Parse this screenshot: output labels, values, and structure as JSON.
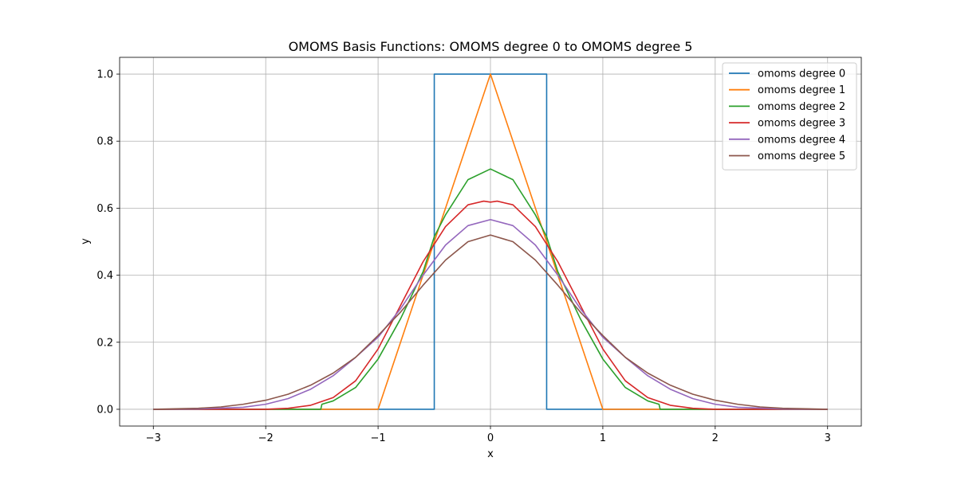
{
  "chart_data": {
    "type": "line",
    "title": "OMOMS Basis Functions: OMOMS degree 0 to OMOMS degree 5",
    "xlabel": "x",
    "ylabel": "y",
    "xlim": [
      -3.3,
      3.3
    ],
    "ylim": [
      -0.05,
      1.05
    ],
    "grid": true,
    "legend_position": "top-right",
    "x_ticks": [
      {
        "value": -3,
        "label": "−3"
      },
      {
        "value": -2,
        "label": "−2"
      },
      {
        "value": -1,
        "label": "−1"
      },
      {
        "value": 0,
        "label": "0"
      },
      {
        "value": 1,
        "label": "1"
      },
      {
        "value": 2,
        "label": "2"
      },
      {
        "value": 3,
        "label": "3"
      }
    ],
    "y_ticks": [
      {
        "value": 0.0,
        "label": "0.0"
      },
      {
        "value": 0.2,
        "label": "0.2"
      },
      {
        "value": 0.4,
        "label": "0.4"
      },
      {
        "value": 0.6,
        "label": "0.6"
      },
      {
        "value": 0.8,
        "label": "0.8"
      },
      {
        "value": 1.0,
        "label": "1.0"
      }
    ],
    "series": [
      {
        "name": "omoms degree 0",
        "color": "#1f77b4",
        "points": [
          [
            -3,
            0
          ],
          [
            -0.5,
            0
          ],
          [
            -0.5,
            1
          ],
          [
            0.5,
            1
          ],
          [
            0.5,
            0
          ],
          [
            3,
            0
          ]
        ]
      },
      {
        "name": "omoms degree 1",
        "color": "#ff7f0e",
        "points": [
          [
            -3,
            0
          ],
          [
            -1,
            0
          ],
          [
            0,
            1
          ],
          [
            1,
            0
          ],
          [
            3,
            0
          ]
        ]
      },
      {
        "name": "omoms degree 2",
        "color": "#2ca02c",
        "points": [
          [
            -3,
            0
          ],
          [
            -1.51,
            0
          ],
          [
            -1.5,
            0.015
          ],
          [
            -1.4,
            0.025
          ],
          [
            -1.2,
            0.065
          ],
          [
            -1.0,
            0.15
          ],
          [
            -0.8,
            0.27
          ],
          [
            -0.6,
            0.41
          ],
          [
            -0.5,
            0.515
          ],
          [
            -0.4,
            0.58
          ],
          [
            -0.2,
            0.685
          ],
          [
            0,
            0.717
          ],
          [
            0.2,
            0.685
          ],
          [
            0.4,
            0.58
          ],
          [
            0.5,
            0.515
          ],
          [
            0.6,
            0.41
          ],
          [
            0.8,
            0.27
          ],
          [
            1.0,
            0.15
          ],
          [
            1.2,
            0.065
          ],
          [
            1.4,
            0.025
          ],
          [
            1.5,
            0.015
          ],
          [
            1.51,
            0
          ],
          [
            3,
            0
          ]
        ]
      },
      {
        "name": "omoms degree 3",
        "color": "#d62728",
        "points": [
          [
            -3,
            0
          ],
          [
            -2,
            0
          ],
          [
            -1.8,
            0.003
          ],
          [
            -1.6,
            0.012
          ],
          [
            -1.4,
            0.035
          ],
          [
            -1.2,
            0.085
          ],
          [
            -1.0,
            0.18
          ],
          [
            -0.8,
            0.31
          ],
          [
            -0.6,
            0.44
          ],
          [
            -0.4,
            0.545
          ],
          [
            -0.2,
            0.61
          ],
          [
            -0.06,
            0.621
          ],
          [
            0,
            0.618
          ],
          [
            0.06,
            0.621
          ],
          [
            0.2,
            0.61
          ],
          [
            0.4,
            0.545
          ],
          [
            0.6,
            0.44
          ],
          [
            0.8,
            0.31
          ],
          [
            1.0,
            0.18
          ],
          [
            1.2,
            0.085
          ],
          [
            1.4,
            0.035
          ],
          [
            1.6,
            0.012
          ],
          [
            1.8,
            0.003
          ],
          [
            2,
            0
          ],
          [
            3,
            0
          ]
        ]
      },
      {
        "name": "omoms degree 4",
        "color": "#9467bd",
        "points": [
          [
            -3,
            0
          ],
          [
            -2.6,
            0.001
          ],
          [
            -2.2,
            0.006
          ],
          [
            -2.0,
            0.015
          ],
          [
            -1.8,
            0.032
          ],
          [
            -1.6,
            0.06
          ],
          [
            -1.4,
            0.1
          ],
          [
            -1.2,
            0.155
          ],
          [
            -1.0,
            0.215
          ],
          [
            -0.8,
            0.3
          ],
          [
            -0.6,
            0.4
          ],
          [
            -0.4,
            0.49
          ],
          [
            -0.2,
            0.548
          ],
          [
            0,
            0.566
          ],
          [
            0.2,
            0.548
          ],
          [
            0.4,
            0.49
          ],
          [
            0.6,
            0.4
          ],
          [
            0.8,
            0.3
          ],
          [
            1.0,
            0.215
          ],
          [
            1.2,
            0.155
          ],
          [
            1.4,
            0.1
          ],
          [
            1.6,
            0.06
          ],
          [
            1.8,
            0.032
          ],
          [
            2.0,
            0.015
          ],
          [
            2.2,
            0.006
          ],
          [
            2.6,
            0.001
          ],
          [
            3,
            0
          ]
        ]
      },
      {
        "name": "omoms degree 5",
        "color": "#8c564b",
        "points": [
          [
            -3,
            0
          ],
          [
            -2.6,
            0.003
          ],
          [
            -2.4,
            0.007
          ],
          [
            -2.2,
            0.015
          ],
          [
            -2.0,
            0.027
          ],
          [
            -1.8,
            0.045
          ],
          [
            -1.6,
            0.072
          ],
          [
            -1.4,
            0.108
          ],
          [
            -1.2,
            0.155
          ],
          [
            -1.0,
            0.22
          ],
          [
            -0.8,
            0.29
          ],
          [
            -0.6,
            0.37
          ],
          [
            -0.4,
            0.445
          ],
          [
            -0.2,
            0.5
          ],
          [
            0,
            0.52
          ],
          [
            0.2,
            0.5
          ],
          [
            0.4,
            0.445
          ],
          [
            0.6,
            0.37
          ],
          [
            0.8,
            0.29
          ],
          [
            1.0,
            0.22
          ],
          [
            1.2,
            0.155
          ],
          [
            1.4,
            0.108
          ],
          [
            1.6,
            0.072
          ],
          [
            1.8,
            0.045
          ],
          [
            2.0,
            0.027
          ],
          [
            2.2,
            0.015
          ],
          [
            2.4,
            0.007
          ],
          [
            2.6,
            0.003
          ],
          [
            3,
            0
          ]
        ]
      }
    ]
  }
}
